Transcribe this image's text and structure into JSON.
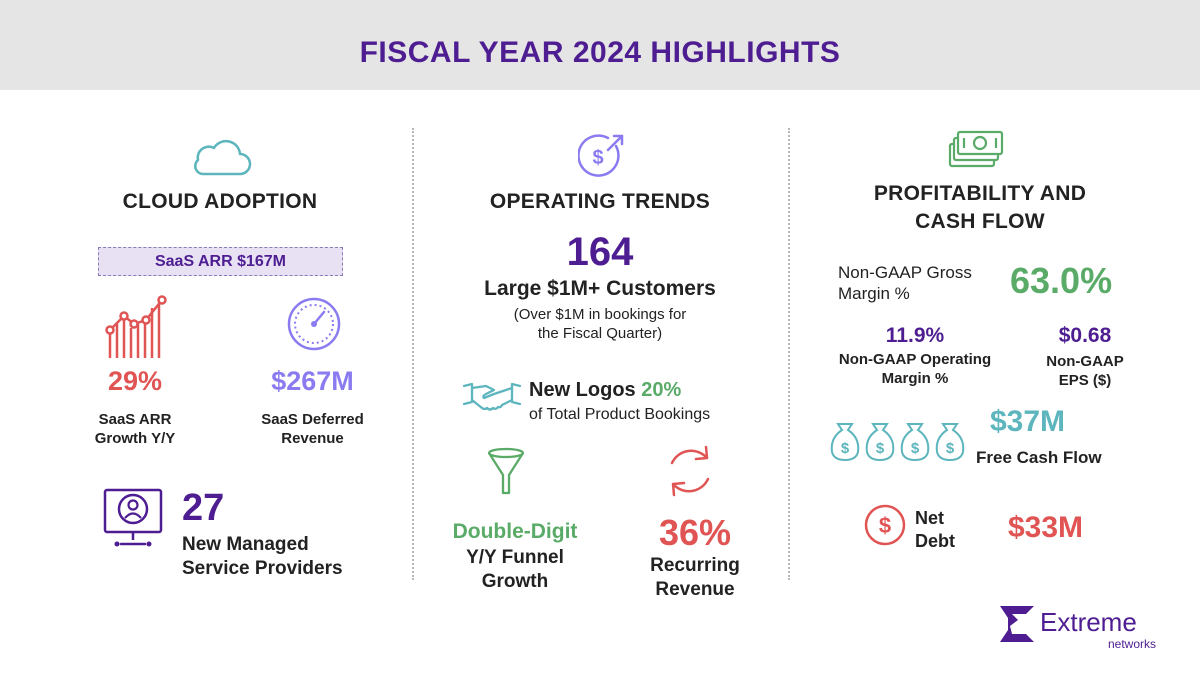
{
  "title": "FISCAL YEAR 2024 HIGHLIGHTS",
  "colors": {
    "purple": "#4d1d91",
    "red": "#e05454",
    "green": "#5aab68",
    "teal": "#5db5bd",
    "lilac": "#8a7cf0",
    "header_band": "#e5e5e5"
  },
  "cloud": {
    "heading": "CLOUD ADOPTION",
    "icon": "cloud-icon",
    "arr_badge": "SaaS ARR $167M",
    "growth": {
      "value": "29%",
      "label_line1": "SaaS ARR",
      "label_line2": "Growth Y/Y",
      "icon": "growth-chart-icon"
    },
    "deferred": {
      "value": "$267M",
      "label_line1": "SaaS Deferred",
      "label_line2": "Revenue",
      "icon": "gauge-icon"
    },
    "msp": {
      "value": "27",
      "label_line1": "New Managed",
      "label_line2": "Service Providers",
      "icon": "monitor-user-icon"
    }
  },
  "trends": {
    "heading": "OPERATING TRENDS",
    "icon": "dollar-growth-icon",
    "customers": {
      "value": "164",
      "label": "Large $1M+ Customers",
      "note_line1": "(Over $1M in bookings for",
      "note_line2": "the Fiscal Quarter)"
    },
    "logos": {
      "label": "New Logos",
      "value": "20%",
      "suffix": "of Total Product Bookings",
      "icon": "handshake-icon"
    },
    "funnel": {
      "value": "Double-Digit",
      "label_line1": "Y/Y Funnel",
      "label_line2": "Growth",
      "icon": "funnel-icon"
    },
    "recurring": {
      "value": "36%",
      "label_line1": "Recurring",
      "label_line2": "Revenue",
      "icon": "refresh-cycle-icon"
    }
  },
  "profit": {
    "heading_line1": "PROFITABILITY AND",
    "heading_line2": "CASH FLOW",
    "icon": "money-stack-icon",
    "gross_margin": {
      "label_line1": "Non-GAAP Gross",
      "label_line2": "Margin %",
      "value": "63.0%"
    },
    "operating_margin": {
      "value": "11.9%",
      "label_line1": "Non-GAAP Operating",
      "label_line2": "Margin %"
    },
    "eps": {
      "value": "$0.68",
      "label_line1": "Non-GAAP",
      "label_line2": "EPS ($)"
    },
    "free_cash_flow": {
      "value": "$37M",
      "label": "Free Cash Flow",
      "icon": "money-bags-icon"
    },
    "net_debt": {
      "label_line1": "Net",
      "label_line2": "Debt",
      "value": "$33M",
      "icon": "dollar-circle-icon"
    }
  },
  "brand": {
    "name": "Extreme",
    "sub": "networks",
    "logo": "extreme-logo-icon"
  }
}
